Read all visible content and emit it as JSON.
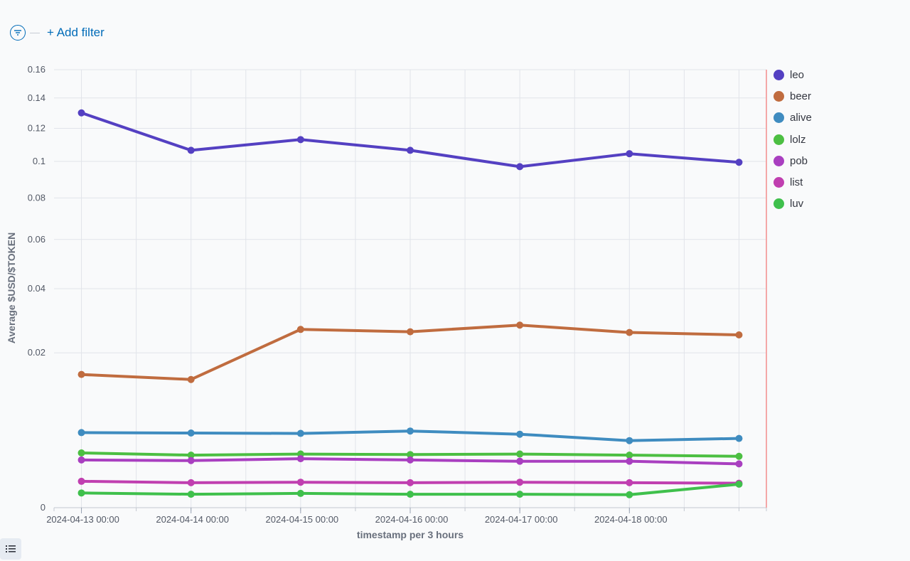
{
  "filter_bar": {
    "add_filter_label": "+ Add filter",
    "filter_icon": "filter-lines-icon"
  },
  "list_toggle_icon": "list-icon",
  "chart_data": {
    "type": "line",
    "xlabel": "timestamp per 3 hours",
    "ylabel": "Average $USD/$TOKEN",
    "y_scale": "sqrt",
    "ylim": [
      0,
      0.16
    ],
    "yticks": [
      0,
      0.02,
      0.04,
      0.06,
      0.08,
      0.1,
      0.12,
      0.14,
      0.16
    ],
    "ytick_labels": [
      "0",
      "0.02",
      "0.04",
      "0.06",
      "0.08",
      "0.1",
      "0.12",
      "0.14",
      "0.16"
    ],
    "xlim": [
      "2024-04-12 18:00",
      "2024-04-19 06:00"
    ],
    "xticks": [
      "2024-04-13 00:00",
      "2024-04-14 00:00",
      "2024-04-15 00:00",
      "2024-04-16 00:00",
      "2024-04-17 00:00",
      "2024-04-18 00:00"
    ],
    "xtick_labels": [
      "2024-04-13 00:00",
      "2024-04-14 00:00",
      "2024-04-15 00:00",
      "2024-04-16 00:00",
      "2024-04-17 00:00",
      "2024-04-18 00:00"
    ],
    "grid": true,
    "legend_position": "right",
    "x": [
      "2024-04-13 00:00",
      "2024-04-14 00:00",
      "2024-04-15 00:00",
      "2024-04-16 00:00",
      "2024-04-17 00:00",
      "2024-04-18 00:00",
      "2024-04-19 00:00"
    ],
    "series": [
      {
        "name": "leo",
        "color": "#5440c2",
        "values": [
          0.13,
          0.1065,
          0.113,
          0.1065,
          0.097,
          0.1045,
          0.0995
        ]
      },
      {
        "name": "beer",
        "color": "#c06c3f",
        "values": [
          0.0148,
          0.0137,
          0.0265,
          0.0258,
          0.0278,
          0.0256,
          0.0249
        ]
      },
      {
        "name": "alive",
        "color": "#3f8cc0",
        "values": [
          0.0047,
          0.00465,
          0.0046,
          0.0049,
          0.0045,
          0.00375,
          0.004
        ]
      },
      {
        "name": "lolz",
        "color": "#4cbf42",
        "values": [
          0.0025,
          0.0023,
          0.0024,
          0.00235,
          0.0024,
          0.0023,
          0.0022
        ]
      },
      {
        "name": "pob",
        "color": "#a93fc0",
        "values": [
          0.0019,
          0.00185,
          0.002,
          0.0019,
          0.0018,
          0.0018,
          0.0016
        ]
      },
      {
        "name": "list",
        "color": "#c03fb0",
        "values": [
          0.00058,
          0.00052,
          0.00054,
          0.00052,
          0.00054,
          0.00052,
          0.0005
        ]
      },
      {
        "name": "luv",
        "color": "#3fc04c",
        "values": [
          0.00018,
          0.00015,
          0.00017,
          0.00015,
          0.00015,
          0.00014,
          0.00046
        ]
      }
    ]
  }
}
